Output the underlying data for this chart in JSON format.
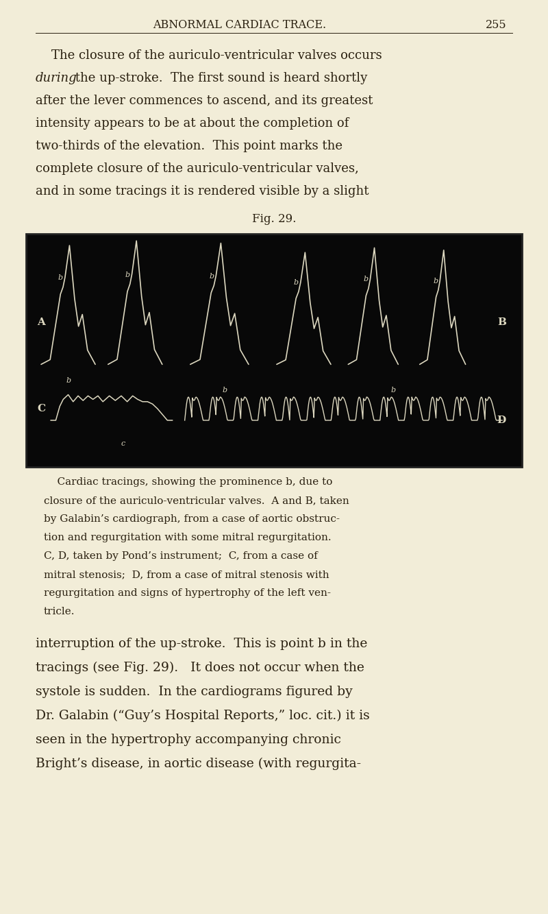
{
  "page_color": "#f2edd8",
  "body_text_color": "#2a2010",
  "header_text": "ABNORMAL CARDIAC TRACE.",
  "page_number": "255",
  "fig_label": "Fig. 29.",
  "trace_color": "#ddd8c0",
  "figure_bg": "#080808",
  "cap_line1": "    Cardiac tracings, showing the prominence b, due to",
  "cap_line2": "closure of the auriculo-ventricular valves.  A and B, taken",
  "cap_line3": "by Galabin’s cardiograph, from a case of aortic obstruc-",
  "cap_line4": "tion and regurgitation with some mitral regurgitation.",
  "cap_line5": "C, D, taken by Pond’s instrument;  C, from a case of",
  "cap_line6": "mitral stenosis;  D, from a case of mitral stenosis with",
  "cap_line7": "regurgitation and signs of hypertrophy of the left ven-",
  "cap_line8": "tricle.",
  "p2_line1": "interruption of the up-stroke.  This is point b in the",
  "p2_line2": "tracings (see Fig. 29).   It does not occur when the",
  "p2_line3": "systole is sudden.  In the cardiograms figured by",
  "p2_line4": "Dr. Galabin (“Guy’s Hospital Reports,” loc. cit.) it is",
  "p2_line5": "seen in the hypertrophy accompanying chronic",
  "p2_line6": "Bright’s disease, in aortic disease (with regurgita-"
}
